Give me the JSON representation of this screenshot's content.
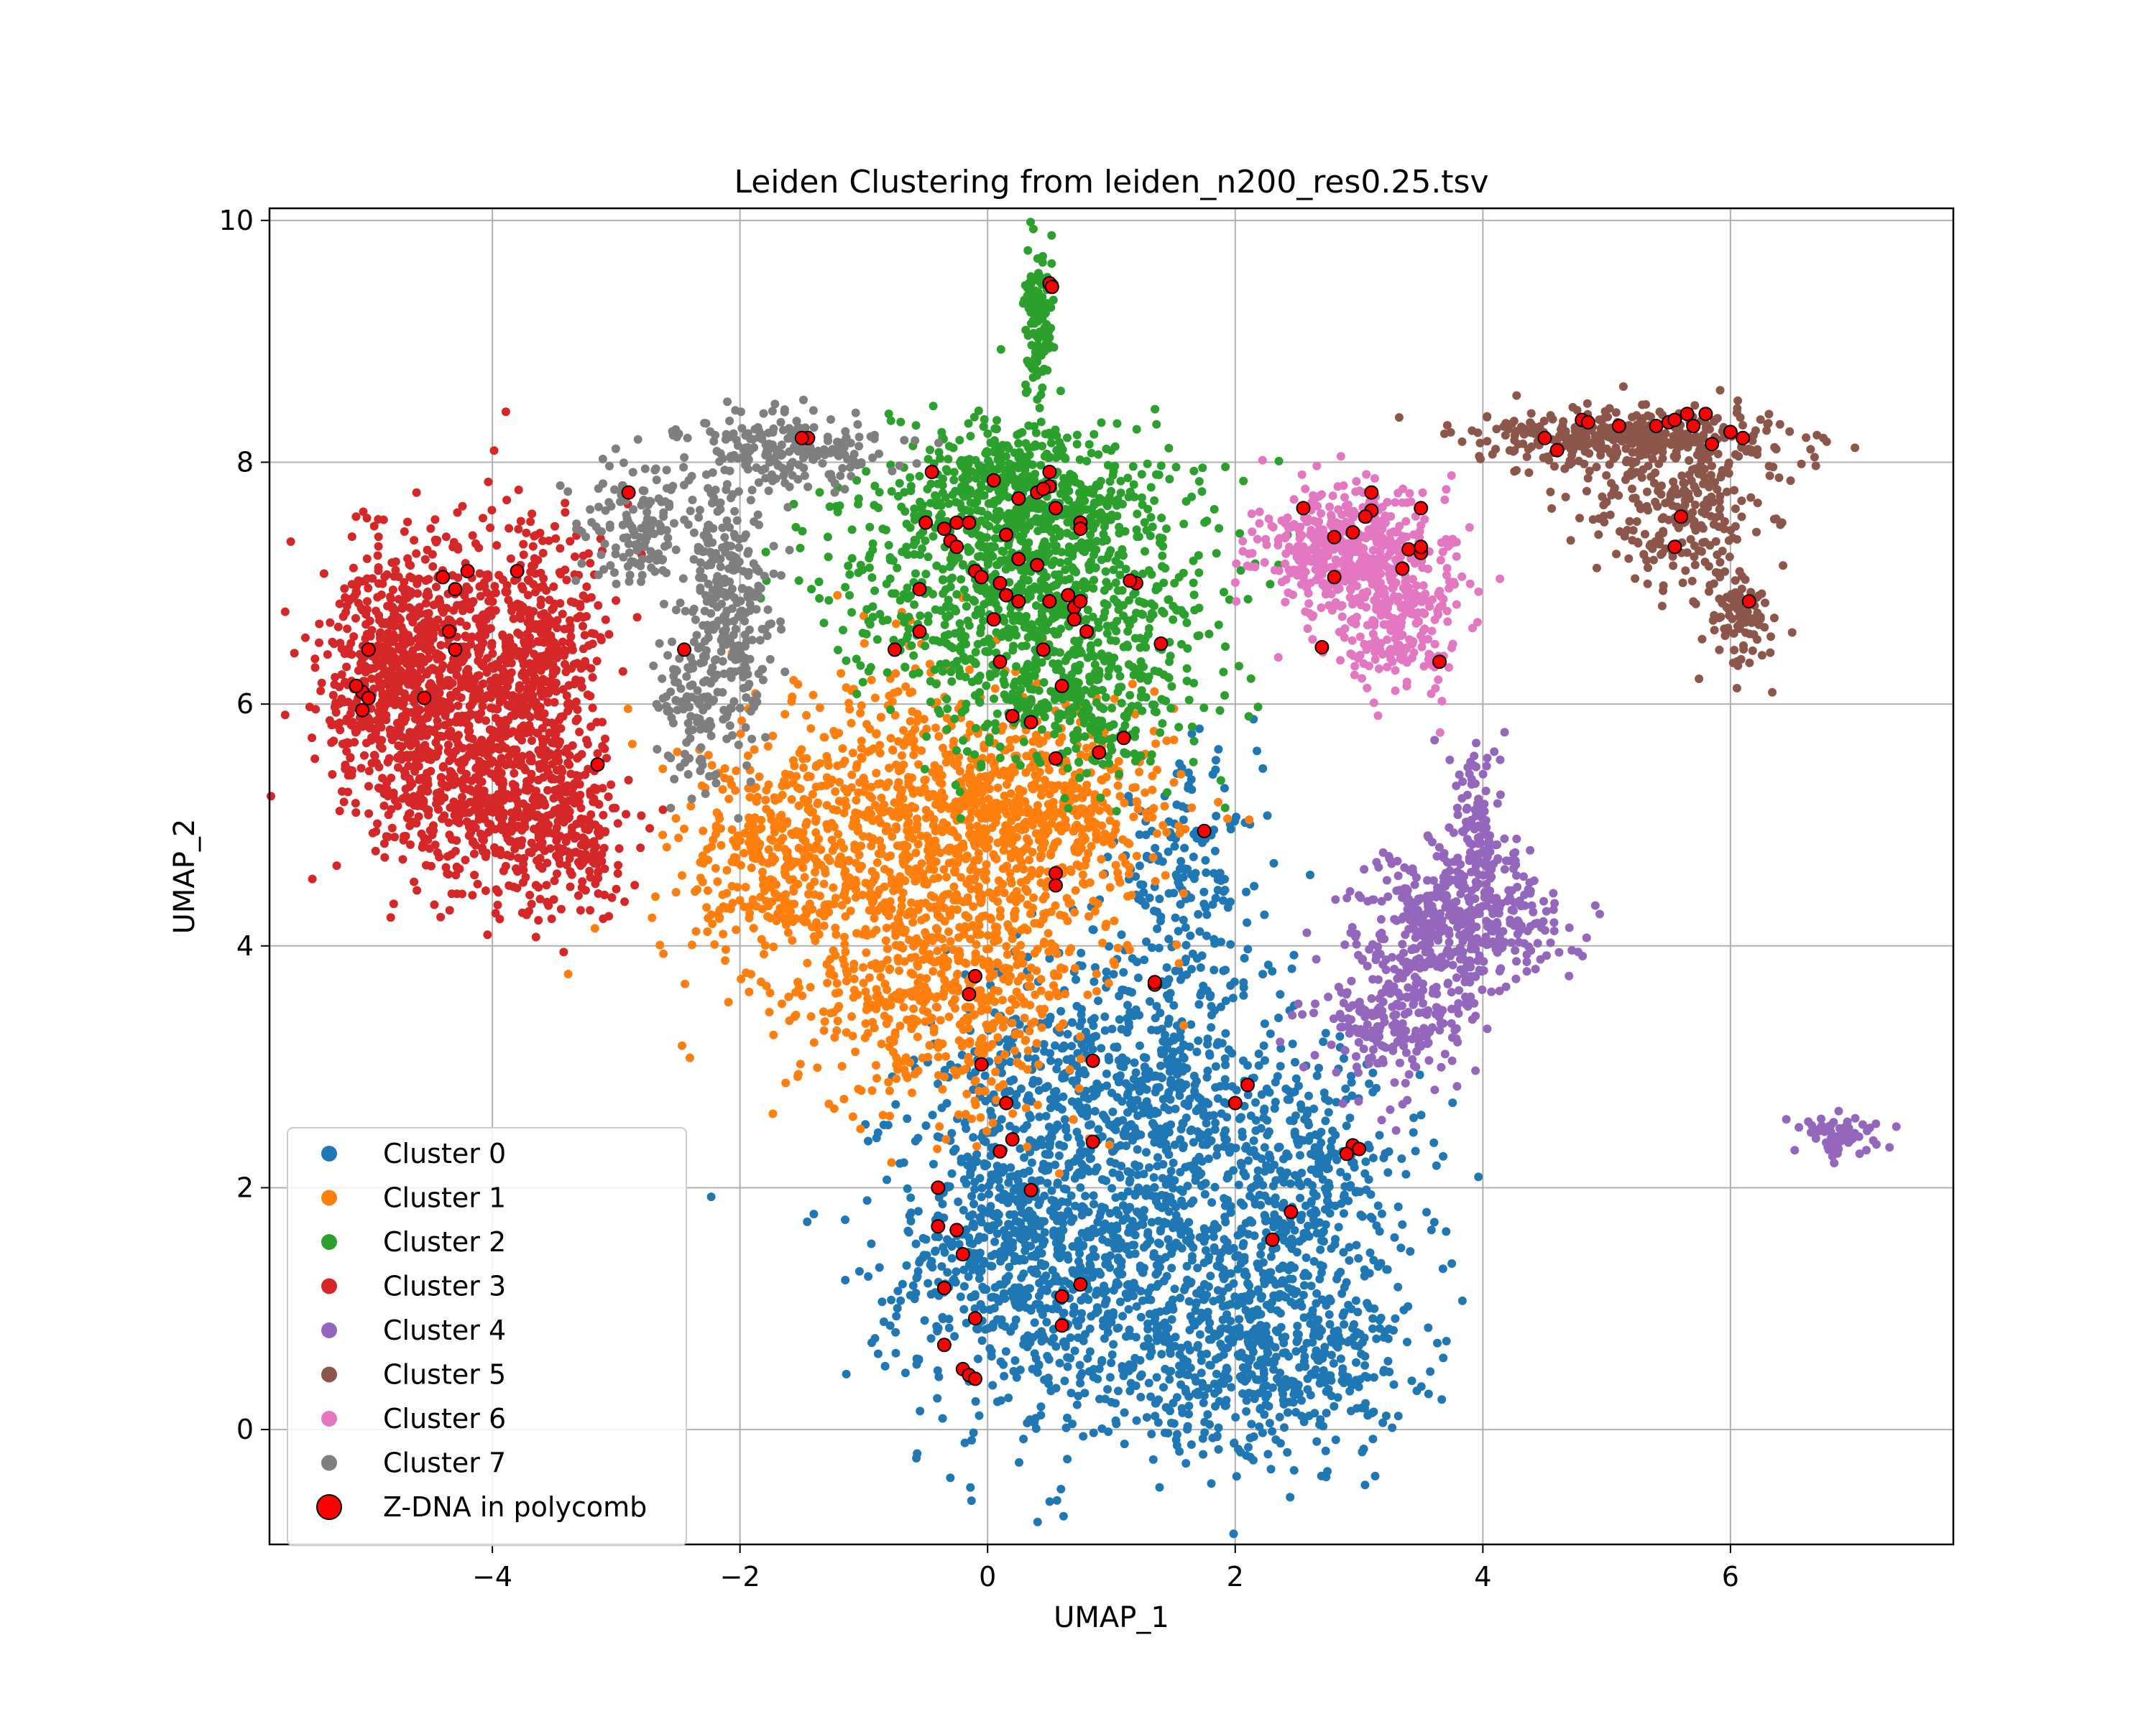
{
  "chart_data": {
    "type": "scatter",
    "title": "Leiden Clustering from leiden_n200_res0.25.tsv",
    "xlabel": "UMAP_1",
    "ylabel": "UMAP_2",
    "xlim": [
      -5.8,
      7.8
    ],
    "ylim": [
      -0.95,
      10.1
    ],
    "xticks": [
      -4,
      -2,
      0,
      2,
      4,
      6
    ],
    "xtick_labels": [
      "−4",
      "−2",
      "0",
      "2",
      "4",
      "6"
    ],
    "yticks": [
      0,
      2,
      4,
      6,
      8,
      10
    ],
    "ytick_labels": [
      "0",
      "2",
      "4",
      "6",
      "8",
      "10"
    ],
    "grid": true,
    "legend_position": "lower-left",
    "series": [
      {
        "name": "Cluster 0",
        "color": "#1f77b4",
        "regions": [
          {
            "cx": 1.2,
            "cy": 1.5,
            "sx": 0.85,
            "sy": 0.9,
            "n": 1100
          },
          {
            "cx": 1.1,
            "cy": 3.0,
            "sx": 0.7,
            "sy": 0.6,
            "n": 500
          },
          {
            "cx": 2.4,
            "cy": 0.6,
            "sx": 0.5,
            "sy": 0.4,
            "n": 420
          },
          {
            "cx": 0.2,
            "cy": 1.5,
            "sx": 0.5,
            "sy": 0.6,
            "n": 420
          },
          {
            "cx": 2.6,
            "cy": 2.0,
            "sx": 0.45,
            "sy": 0.5,
            "n": 280
          },
          {
            "cx": 1.6,
            "cy": 4.6,
            "sx": 0.3,
            "sy": 0.45,
            "n": 160
          }
        ]
      },
      {
        "name": "Cluster 1",
        "color": "#ff7f0e",
        "regions": [
          {
            "cx": -0.5,
            "cy": 4.8,
            "sx": 0.8,
            "sy": 0.7,
            "n": 1100
          },
          {
            "cx": -0.3,
            "cy": 3.6,
            "sx": 0.55,
            "sy": 0.5,
            "n": 420
          },
          {
            "cx": -1.8,
            "cy": 4.7,
            "sx": 0.3,
            "sy": 0.4,
            "n": 220
          },
          {
            "cx": 0.5,
            "cy": 5.2,
            "sx": 0.5,
            "sy": 0.35,
            "n": 320
          }
        ]
      },
      {
        "name": "Cluster 2",
        "color": "#2ca02c",
        "regions": [
          {
            "cx": 0.3,
            "cy": 7.0,
            "sx": 0.75,
            "sy": 0.55,
            "n": 1000
          },
          {
            "cx": 0.3,
            "cy": 7.8,
            "sx": 0.45,
            "sy": 0.3,
            "n": 350
          },
          {
            "cx": 0.7,
            "cy": 6.0,
            "sx": 0.45,
            "sy": 0.3,
            "n": 250
          },
          {
            "cx": 0.42,
            "cy": 9.1,
            "sx": 0.06,
            "sy": 0.28,
            "n": 120
          }
        ]
      },
      {
        "name": "Cluster 3",
        "color": "#d62728",
        "regions": [
          {
            "cx": -4.4,
            "cy": 6.2,
            "sx": 0.45,
            "sy": 0.6,
            "n": 900
          },
          {
            "cx": -4.0,
            "cy": 5.1,
            "sx": 0.45,
            "sy": 0.35,
            "n": 380
          },
          {
            "cx": -3.6,
            "cy": 6.3,
            "sx": 0.25,
            "sy": 0.55,
            "n": 380
          },
          {
            "cx": -3.3,
            "cy": 4.8,
            "sx": 0.22,
            "sy": 0.3,
            "n": 160
          },
          {
            "cx": -4.9,
            "cy": 6.3,
            "sx": 0.2,
            "sy": 0.45,
            "n": 200
          }
        ]
      },
      {
        "name": "Cluster 4",
        "color": "#9467bd",
        "regions": [
          {
            "cx": 3.8,
            "cy": 4.2,
            "sx": 0.4,
            "sy": 0.3,
            "n": 450
          },
          {
            "cx": 3.3,
            "cy": 3.4,
            "sx": 0.3,
            "sy": 0.3,
            "n": 220
          },
          {
            "cx": 3.95,
            "cy": 5.0,
            "sx": 0.12,
            "sy": 0.35,
            "n": 90
          },
          {
            "cx": 6.9,
            "cy": 2.45,
            "sx": 0.15,
            "sy": 0.08,
            "n": 70
          }
        ]
      },
      {
        "name": "Cluster 5",
        "color": "#8c564b",
        "regions": [
          {
            "cx": 5.2,
            "cy": 8.2,
            "sx": 0.6,
            "sy": 0.12,
            "n": 380
          },
          {
            "cx": 5.6,
            "cy": 7.6,
            "sx": 0.35,
            "sy": 0.35,
            "n": 250
          },
          {
            "cx": 6.1,
            "cy": 6.7,
            "sx": 0.15,
            "sy": 0.2,
            "n": 90
          }
        ]
      },
      {
        "name": "Cluster 6",
        "color": "#e377c2",
        "regions": [
          {
            "cx": 2.9,
            "cy": 7.3,
            "sx": 0.35,
            "sy": 0.25,
            "n": 420
          },
          {
            "cx": 3.3,
            "cy": 6.7,
            "sx": 0.3,
            "sy": 0.3,
            "n": 250
          }
        ]
      },
      {
        "name": "Cluster 7",
        "color": "#7f7f7f",
        "regions": [
          {
            "cx": -1.6,
            "cy": 8.1,
            "sx": 0.4,
            "sy": 0.15,
            "n": 200
          },
          {
            "cx": -2.1,
            "cy": 6.8,
            "sx": 0.18,
            "sy": 0.6,
            "n": 300
          },
          {
            "cx": -2.8,
            "cy": 7.5,
            "sx": 0.25,
            "sy": 0.25,
            "n": 140
          },
          {
            "cx": -2.4,
            "cy": 6.0,
            "sx": 0.12,
            "sy": 0.3,
            "n": 90
          }
        ]
      }
    ],
    "highlight": {
      "name": "Z-DNA in polycomb",
      "color": "#ff0000",
      "edgecolor": "#000000",
      "points": [
        [
          0.5,
          9.48
        ],
        [
          0.52,
          9.45
        ],
        [
          -1.45,
          8.2
        ],
        [
          -1.5,
          8.2
        ],
        [
          -2.9,
          7.75
        ],
        [
          -0.45,
          7.92
        ],
        [
          0.5,
          7.92
        ],
        [
          0.05,
          7.85
        ],
        [
          0.25,
          7.7
        ],
        [
          0.4,
          7.75
        ],
        [
          0.5,
          7.8
        ],
        [
          0.45,
          7.78
        ],
        [
          0.55,
          7.62
        ],
        [
          0.75,
          7.5
        ],
        [
          0.75,
          7.45
        ],
        [
          -0.35,
          7.45
        ],
        [
          -0.25,
          7.5
        ],
        [
          -0.15,
          7.5
        ],
        [
          -0.3,
          7.35
        ],
        [
          -0.25,
          7.3
        ],
        [
          0.15,
          7.4
        ],
        [
          0.25,
          7.2
        ],
        [
          0.4,
          7.15
        ],
        [
          -0.1,
          7.1
        ],
        [
          -0.05,
          7.05
        ],
        [
          0.1,
          7.0
        ],
        [
          0.15,
          6.9
        ],
        [
          0.25,
          6.85
        ],
        [
          0.5,
          6.85
        ],
        [
          0.65,
          6.9
        ],
        [
          0.7,
          6.8
        ],
        [
          0.75,
          6.85
        ],
        [
          0.7,
          6.7
        ],
        [
          0.8,
          6.6
        ],
        [
          1.2,
          7.0
        ],
        [
          1.15,
          7.02
        ],
        [
          0.05,
          6.7
        ],
        [
          -0.55,
          6.95
        ],
        [
          -0.75,
          6.45
        ],
        [
          -0.55,
          6.6
        ],
        [
          0.45,
          6.45
        ],
        [
          0.1,
          6.35
        ],
        [
          1.4,
          6.5
        ],
        [
          0.6,
          6.15
        ],
        [
          0.2,
          5.9
        ],
        [
          0.35,
          5.85
        ],
        [
          0.55,
          5.55
        ],
        [
          0.9,
          5.6
        ],
        [
          1.1,
          5.72
        ],
        [
          -4.2,
          7.1
        ],
        [
          -4.4,
          7.05
        ],
        [
          -4.3,
          6.95
        ],
        [
          -3.8,
          7.1
        ],
        [
          -4.35,
          6.6
        ],
        [
          -4.3,
          6.45
        ],
        [
          -5.0,
          6.45
        ],
        [
          -5.05,
          6.1
        ],
        [
          -5.1,
          6.15
        ],
        [
          -5.0,
          6.05
        ],
        [
          -4.55,
          6.05
        ],
        [
          -5.05,
          5.95
        ],
        [
          -3.15,
          5.5
        ],
        [
          -2.45,
          6.45
        ],
        [
          0.55,
          4.6
        ],
        [
          0.55,
          4.5
        ],
        [
          1.75,
          4.95
        ],
        [
          1.35,
          3.68
        ],
        [
          1.35,
          3.7
        ],
        [
          -0.1,
          3.75
        ],
        [
          -0.15,
          3.6
        ],
        [
          -0.05,
          3.02
        ],
        [
          0.85,
          3.05
        ],
        [
          2.1,
          2.85
        ],
        [
          2.0,
          2.7
        ],
        [
          0.15,
          2.7
        ],
        [
          0.85,
          2.38
        ],
        [
          0.2,
          2.4
        ],
        [
          0.1,
          2.3
        ],
        [
          -0.4,
          2.0
        ],
        [
          0.35,
          1.98
        ],
        [
          2.95,
          2.35
        ],
        [
          3.0,
          2.32
        ],
        [
          2.9,
          2.28
        ],
        [
          2.45,
          1.8
        ],
        [
          2.3,
          1.57
        ],
        [
          -0.4,
          1.68
        ],
        [
          -0.25,
          1.65
        ],
        [
          -0.2,
          1.45
        ],
        [
          -0.35,
          1.17
        ],
        [
          0.75,
          1.2
        ],
        [
          0.6,
          1.1
        ],
        [
          -0.1,
          0.92
        ],
        [
          0.6,
          0.86
        ],
        [
          -0.35,
          0.7
        ],
        [
          -0.2,
          0.5
        ],
        [
          -0.15,
          0.45
        ],
        [
          -0.1,
          0.42
        ],
        [
          2.7,
          6.47
        ],
        [
          2.8,
          7.05
        ],
        [
          2.8,
          7.38
        ],
        [
          2.95,
          7.42
        ],
        [
          3.1,
          7.6
        ],
        [
          3.05,
          7.55
        ],
        [
          3.1,
          7.75
        ],
        [
          3.5,
          7.62
        ],
        [
          3.4,
          7.28
        ],
        [
          3.35,
          7.12
        ],
        [
          3.5,
          7.25
        ],
        [
          3.5,
          7.3
        ],
        [
          3.65,
          6.35
        ],
        [
          2.55,
          7.62
        ],
        [
          4.5,
          8.2
        ],
        [
          4.6,
          8.1
        ],
        [
          4.8,
          8.35
        ],
        [
          4.85,
          8.33
        ],
        [
          5.1,
          8.3
        ],
        [
          5.4,
          8.3
        ],
        [
          5.5,
          8.33
        ],
        [
          5.55,
          8.35
        ],
        [
          5.65,
          8.4
        ],
        [
          5.7,
          8.3
        ],
        [
          5.8,
          8.4
        ],
        [
          5.85,
          8.15
        ],
        [
          6.0,
          8.25
        ],
        [
          6.1,
          8.2
        ],
        [
          5.55,
          7.3
        ],
        [
          5.6,
          7.55
        ],
        [
          6.15,
          6.85
        ],
        [
          -0.5,
          7.5
        ]
      ]
    }
  }
}
